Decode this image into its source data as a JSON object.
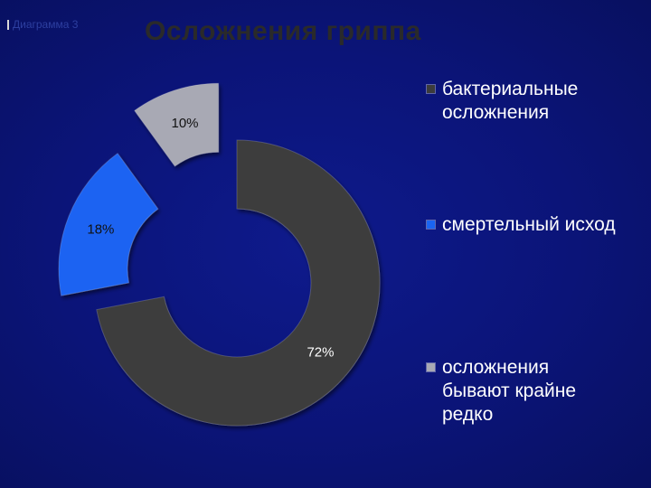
{
  "header": {
    "corner_label": "Диаграмма 3",
    "title": "Осложнения гриппа"
  },
  "chart_data": {
    "type": "pie",
    "title": "Осложнения гриппа",
    "donut": true,
    "exploded": true,
    "legend_position": "right",
    "categories": [
      "бактериальные осложнения",
      "смертельный исход",
      "осложнения бывают крайне редко"
    ],
    "values": [
      72,
      18,
      10
    ],
    "data_labels": [
      "72%",
      "18%",
      "10%"
    ],
    "colors": [
      "#3c3c3c",
      "#1a64f2",
      "#a8a9b4"
    ],
    "label_colors": [
      "#ffffff",
      "#111111",
      "#111111"
    ]
  }
}
